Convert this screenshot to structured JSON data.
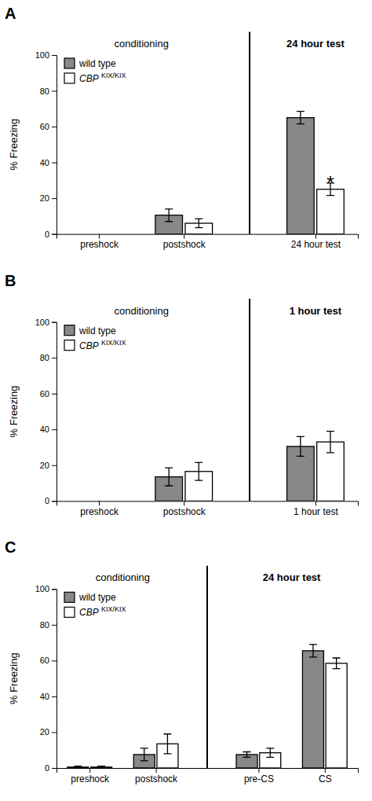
{
  "chart_data": [
    {
      "type": "bar",
      "title": "A",
      "categories": [
        "preshock",
        "postshock",
        "24 hour test"
      ],
      "series": [
        {
          "name": "wild type",
          "color": "#888888",
          "values": [
            0,
            10.5,
            65.0
          ],
          "errors": [
            0,
            3.5,
            3.5
          ]
        },
        {
          "name": "CBP KIX/KIX",
          "color": "#ffffff",
          "values": [
            0,
            6.0,
            25.0
          ],
          "errors": [
            0,
            2.5,
            3.5
          ]
        }
      ],
      "ylabel": "% Freezing",
      "ylim": [
        0,
        100
      ],
      "yticks": [
        0,
        20,
        40,
        60,
        80,
        100
      ],
      "grid": false,
      "legend": "upper left",
      "annotations": [
        {
          "text": "conditioning",
          "categories": [
            "preshock",
            "postshock"
          ]
        },
        {
          "text": "24 hour test",
          "categories": [
            "24 hour test"
          ]
        },
        {
          "text": "*",
          "category": "24 hour test",
          "series": "CBP KIX/KIX"
        }
      ]
    },
    {
      "type": "bar",
      "title": "B",
      "categories": [
        "preshock",
        "postshock",
        "1 hour test"
      ],
      "series": [
        {
          "name": "wild type",
          "color": "#888888",
          "values": [
            0,
            13.5,
            30.5
          ],
          "errors": [
            0,
            5.0,
            5.5
          ]
        },
        {
          "name": "CBP KIX/KIX",
          "color": "#ffffff",
          "values": [
            0,
            16.5,
            33.0
          ],
          "errors": [
            0,
            5.0,
            6.0
          ]
        }
      ],
      "ylabel": "% Freezing",
      "ylim": [
        0,
        100
      ],
      "yticks": [
        0,
        20,
        40,
        60,
        80,
        100
      ],
      "grid": false,
      "legend": "upper left",
      "annotations": [
        {
          "text": "conditioning",
          "categories": [
            "preshock",
            "postshock"
          ]
        },
        {
          "text": "1 hour test",
          "categories": [
            "1 hour test"
          ]
        }
      ]
    },
    {
      "type": "bar",
      "title": "C",
      "categories": [
        "preshock",
        "postshock",
        "pre-CS",
        "CS"
      ],
      "series": [
        {
          "name": "wild type",
          "color": "#888888",
          "values": [
            0.5,
            7.5,
            7.5,
            65.5
          ],
          "errors": [
            0.5,
            3.5,
            1.5,
            3.5
          ]
        },
        {
          "name": "CBP KIX/KIX",
          "color": "#ffffff",
          "values": [
            0.5,
            13.5,
            8.5,
            58.5
          ],
          "errors": [
            0.5,
            5.5,
            2.5,
            3.0
          ]
        }
      ],
      "ylabel": "% Freezing",
      "ylim": [
        0,
        100
      ],
      "yticks": [
        0,
        20,
        40,
        60,
        80,
        100
      ],
      "grid": false,
      "legend": "upper left",
      "annotations": [
        {
          "text": "conditioning",
          "categories": [
            "preshock",
            "postshock"
          ]
        },
        {
          "text": "24 hour test",
          "categories": [
            "pre-CS",
            "CS"
          ]
        }
      ]
    }
  ]
}
